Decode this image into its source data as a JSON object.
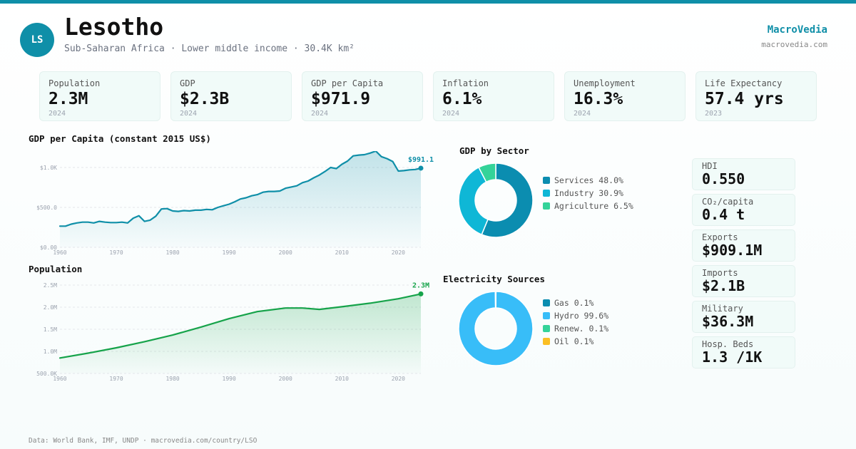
{
  "header": {
    "avatar": "LS",
    "country": "Lesotho",
    "subtitle": "Sub-Saharan Africa · Lower middle income · 30.4K km²",
    "brand": "MacroVedia",
    "brand_url": "macrovedia.com",
    "accent_color": "#0f8fa8"
  },
  "kpis": [
    {
      "label": "Population",
      "value": "2.3M",
      "year": "2024"
    },
    {
      "label": "GDP",
      "value": "$2.3B",
      "year": "2024"
    },
    {
      "label": "GDP per Capita",
      "value": "$971.9",
      "year": "2024"
    },
    {
      "label": "Inflation",
      "value": "6.1%",
      "year": "2024"
    },
    {
      "label": "Unemployment",
      "value": "16.3%",
      "year": "2024"
    },
    {
      "label": "Life Expectancy",
      "value": "57.4 yrs",
      "year": "2023"
    }
  ],
  "stats": [
    {
      "label": "HDI",
      "value": "0.550"
    },
    {
      "label": "CO₂/capita",
      "value": "0.4 t"
    },
    {
      "label": "Exports",
      "value": "$909.1M"
    },
    {
      "label": "Imports",
      "value": "$2.1B"
    },
    {
      "label": "Military",
      "value": "$36.3M"
    },
    {
      "label": "Hosp. Beds",
      "value": "1.3 /1K"
    }
  ],
  "footer": "Data: World Bank, IMF, UNDP · macrovedia.com/country/LSO",
  "chart_data": [
    {
      "id": "gdp_per_capita",
      "type": "area",
      "title": "GDP per Capita (constant 2015 US$)",
      "color": "#0f8fa8",
      "x": [
        1960,
        1961,
        1962,
        1963,
        1964,
        1965,
        1966,
        1967,
        1968,
        1969,
        1970,
        1971,
        1972,
        1973,
        1974,
        1975,
        1976,
        1977,
        1978,
        1979,
        1980,
        1981,
        1982,
        1983,
        1984,
        1985,
        1986,
        1987,
        1988,
        1989,
        1990,
        1991,
        1992,
        1993,
        1994,
        1995,
        1996,
        1997,
        1998,
        1999,
        2000,
        2001,
        2002,
        2003,
        2004,
        2005,
        2006,
        2007,
        2008,
        2009,
        2010,
        2011,
        2012,
        2013,
        2014,
        2015,
        2016,
        2017,
        2018,
        2019,
        2020,
        2021,
        2022,
        2023,
        2024
      ],
      "y": [
        265,
        265,
        290,
        305,
        315,
        315,
        305,
        325,
        315,
        310,
        310,
        315,
        305,
        365,
        395,
        325,
        340,
        390,
        480,
        485,
        455,
        450,
        460,
        455,
        465,
        465,
        475,
        470,
        500,
        520,
        540,
        570,
        605,
        620,
        645,
        660,
        690,
        700,
        700,
        705,
        740,
        755,
        770,
        810,
        830,
        870,
        905,
        950,
        1000,
        985,
        1040,
        1080,
        1145,
        1155,
        1160,
        1180,
        1205,
        1135,
        1110,
        1075,
        955,
        960,
        970,
        975,
        991.1
      ],
      "xticks": [
        1960,
        1970,
        1980,
        1990,
        2000,
        2010,
        2020
      ],
      "yticks": [
        0,
        500,
        1000
      ],
      "ytick_labels": [
        "$0.00",
        "$500.0",
        "$1.0K"
      ],
      "ylim": [
        0,
        1080
      ],
      "end_label": "$991.1"
    },
    {
      "id": "population",
      "type": "area",
      "title": "Population",
      "color": "#16a34a",
      "x": [
        1960,
        1965,
        1970,
        1975,
        1980,
        1985,
        1990,
        1995,
        2000,
        2003,
        2006,
        2010,
        2015,
        2020,
        2024
      ],
      "y": [
        0.85,
        0.96,
        1.08,
        1.22,
        1.37,
        1.55,
        1.74,
        1.9,
        1.98,
        1.98,
        1.95,
        2.01,
        2.09,
        2.19,
        2.3
      ],
      "xticks": [
        1960,
        1970,
        1980,
        1990,
        2000,
        2010,
        2020
      ],
      "yticks": [
        0.5,
        1.0,
        1.5,
        2.0,
        2.5
      ],
      "ytick_labels": [
        "500.0K",
        "1.0M",
        "1.5M",
        "2.0M",
        "2.5M"
      ],
      "ylim": [
        0.5,
        2.5
      ],
      "end_label": "2.3M"
    },
    {
      "id": "gdp_by_sector",
      "type": "pie",
      "title": "GDP by Sector",
      "labels": [
        "Services",
        "Industry",
        "Agriculture"
      ],
      "values": [
        48.0,
        30.9,
        6.5
      ],
      "legend": [
        "Services 48.0%",
        "Industry 30.9%",
        "Agriculture 6.5%"
      ],
      "colors": [
        "#0b8db0",
        "#0fb7d6",
        "#34d399"
      ]
    },
    {
      "id": "electricity_sources",
      "type": "pie",
      "title": "Electricity Sources",
      "labels": [
        "Gas",
        "Hydro",
        "Renew.",
        "Oil"
      ],
      "values": [
        0.1,
        99.6,
        0.1,
        0.1
      ],
      "legend": [
        "Gas 0.1%",
        "Hydro 99.6%",
        "Renew. 0.1%",
        "Oil 0.1%"
      ],
      "colors": [
        "#0b8db0",
        "#38bdf8",
        "#34d399",
        "#fbbf24"
      ]
    }
  ]
}
